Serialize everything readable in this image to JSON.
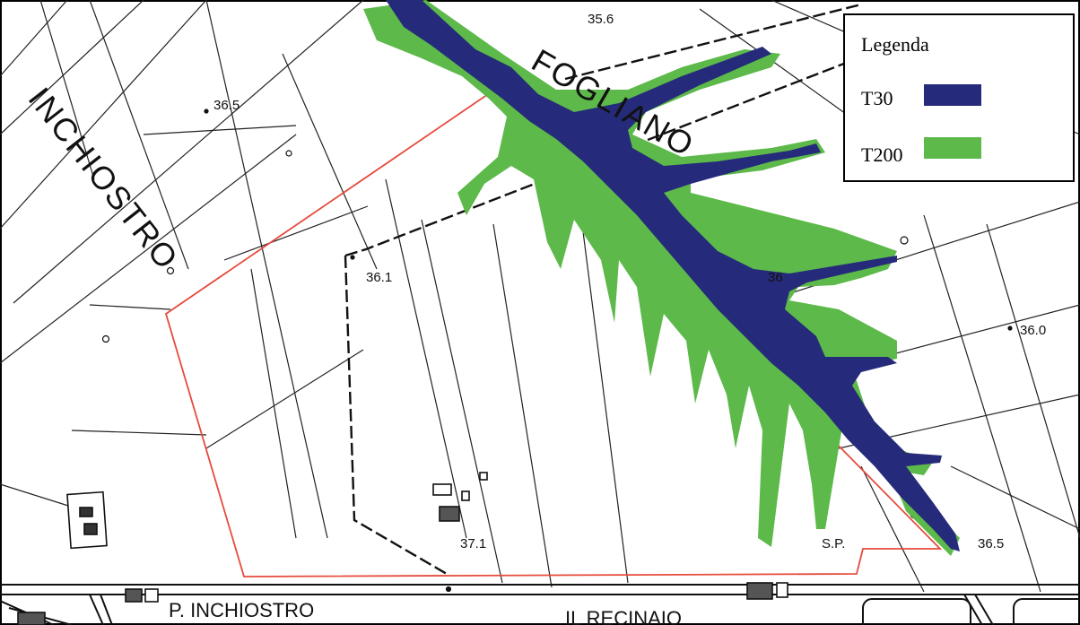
{
  "map": {
    "labels": {
      "foglino": "FOGLIANO",
      "inchiostro": "INCHIOSTRO",
      "p_inchiostro": "P.  INCHIOSTRO",
      "recinaio": "IL   RECINAIO",
      "sp": "S.P."
    },
    "elevations": [
      "35.6",
      "36.5",
      "36.1",
      "36",
      "36.0",
      "37.1",
      "36.5"
    ]
  },
  "legend": {
    "title": "Legenda",
    "items": [
      {
        "label": "T30",
        "color": "#262a7a"
      },
      {
        "label": "T200",
        "color": "#5cb94a"
      }
    ]
  },
  "colors": {
    "boundary": "#e64b3c",
    "t30": "#262a7a",
    "t200": "#5cb94a"
  }
}
